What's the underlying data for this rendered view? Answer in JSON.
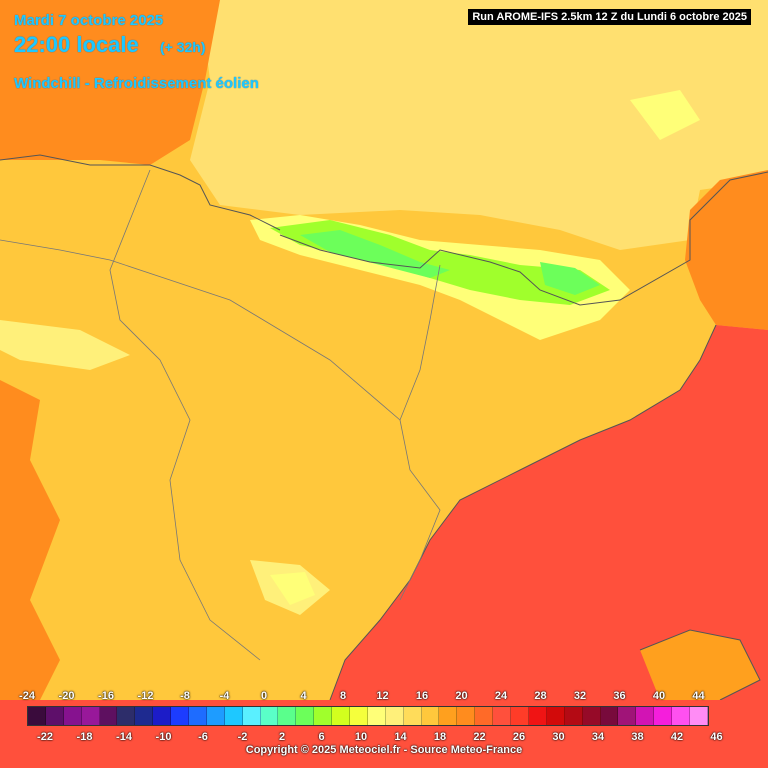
{
  "header": {
    "date": "Mardi 7 octobre 2025",
    "time": "22:00 locale",
    "lead": "(+ 32h)",
    "parameter": "Windchill - Refroidissement éolien",
    "run_info": "Run AROME-IFS 2.5km 12 Z du Lundi 6 octobre 2025"
  },
  "legend": {
    "top_labels": [
      "-24",
      "-20",
      "-16",
      "-12",
      "-8",
      "-4",
      "0",
      "4",
      "8",
      "12",
      "16",
      "20",
      "24",
      "28",
      "32",
      "36",
      "40",
      "44"
    ],
    "bottom_labels": [
      "-22",
      "-18",
      "-14",
      "-10",
      "-6",
      "-2",
      "2",
      "6",
      "10",
      "14",
      "18",
      "22",
      "26",
      "30",
      "34",
      "38",
      "42",
      "46"
    ],
    "colors": [
      "#3a0b3c",
      "#5e0f6a",
      "#86128f",
      "#98189a",
      "#5e1060",
      "#2d2d6a",
      "#1e2a90",
      "#1c1cc8",
      "#1c3cff",
      "#1e6cff",
      "#1e9cff",
      "#1ec8ff",
      "#5af0ff",
      "#5affc8",
      "#5aff8c",
      "#6cff5a",
      "#a0ff2c",
      "#d2ff1e",
      "#f5ff3c",
      "#ffff78",
      "#fff07a",
      "#ffdc5a",
      "#ffc83c",
      "#ffa01e",
      "#ff8c1e",
      "#ff6a28",
      "#ff503c",
      "#ff3c28",
      "#f01414",
      "#d20a0a",
      "#b40a14",
      "#960a28",
      "#780a3c",
      "#a01478",
      "#d214b4",
      "#f51edc",
      "#ff50f0",
      "#ff8cf5"
    ]
  },
  "footer": {
    "copyright": "Copyright © 2025 Meteociel.fr - Source Meteo-France"
  }
}
